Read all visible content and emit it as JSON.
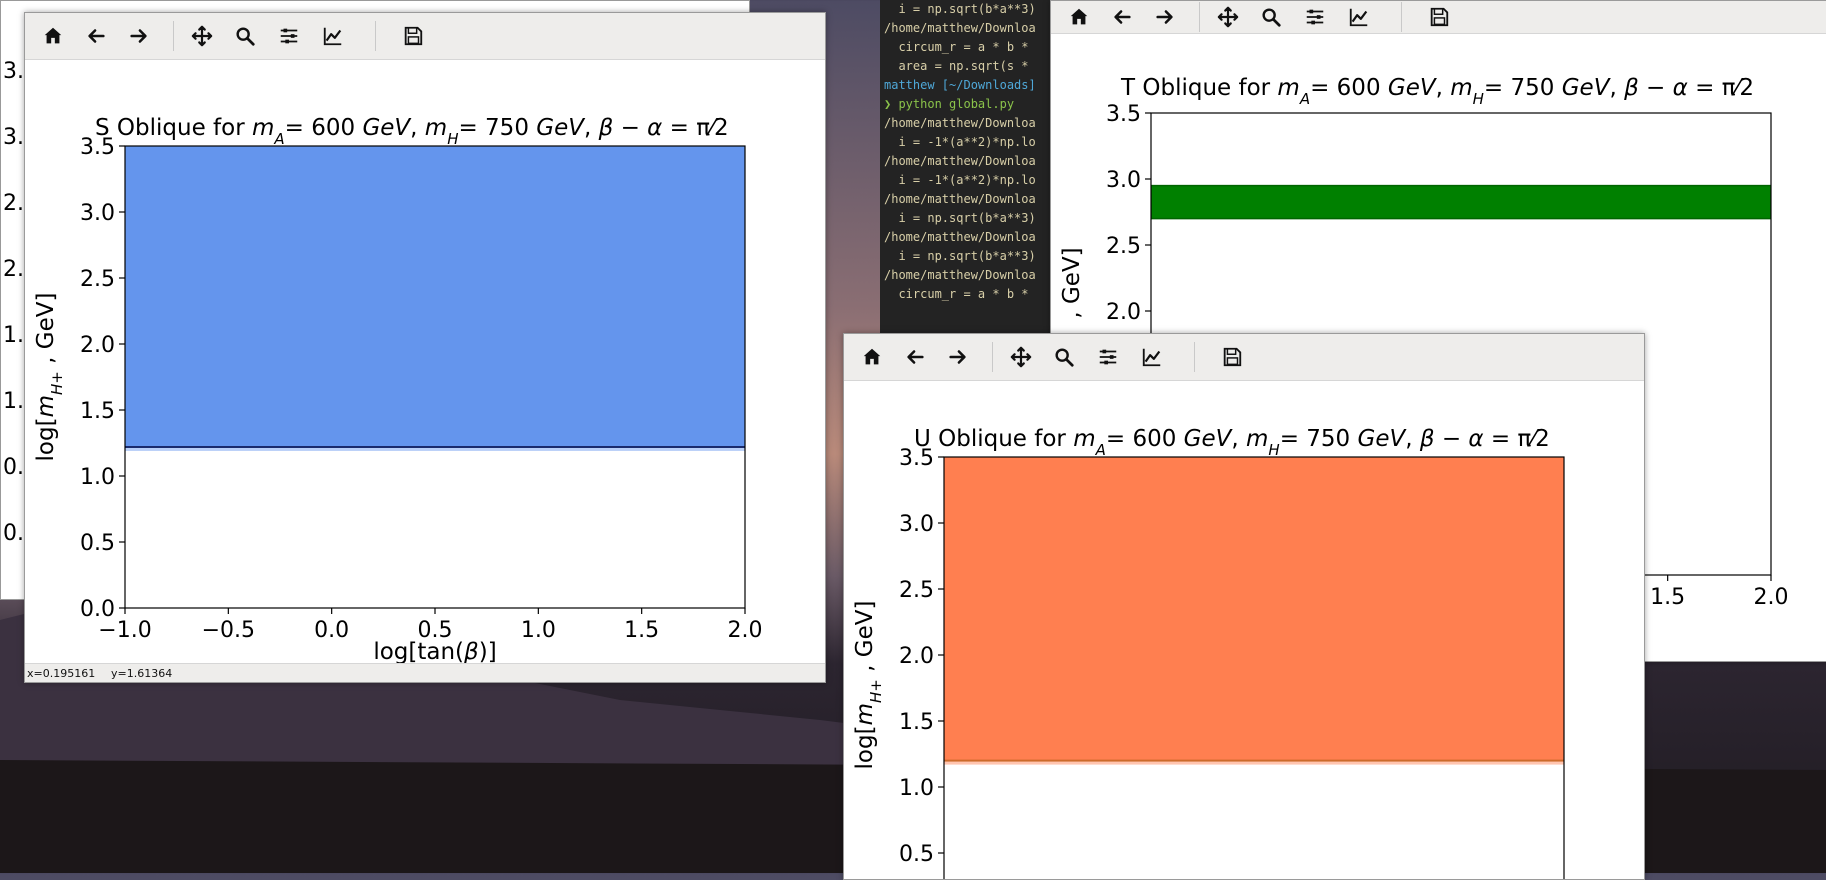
{
  "terminal": {
    "lines": [
      {
        "text": "  i = np.sqrt(b*a**3)",
        "cls": ""
      },
      {
        "text": "/home/matthew/Downloa",
        "cls": ""
      },
      {
        "text": "  circum_r = a * b *",
        "cls": ""
      },
      {
        "text": "  area = np.sqrt(s *",
        "cls": ""
      },
      {
        "text": "matthew [~/Downloads]",
        "cls": "cyan"
      },
      {
        "text": "❯ python global.py",
        "cls": "green"
      },
      {
        "text": "/home/matthew/Downloa",
        "cls": ""
      },
      {
        "text": "  i = -1*(a**2)*np.lo",
        "cls": ""
      },
      {
        "text": "/home/matthew/Downloa",
        "cls": ""
      },
      {
        "text": "  i = -1*(a**2)*np.lo",
        "cls": ""
      },
      {
        "text": "/home/matthew/Downloa",
        "cls": ""
      },
      {
        "text": "  i = np.sqrt(b*a**3)",
        "cls": ""
      },
      {
        "text": "/home/matthew/Downloa",
        "cls": ""
      },
      {
        "text": "  i = np.sqrt(b*a**3)",
        "cls": ""
      },
      {
        "text": "/home/matthew/Downloa",
        "cls": ""
      },
      {
        "text": "  circum_r = a * b *",
        "cls": ""
      }
    ]
  },
  "ghost_window": {
    "tick_fragments": [
      "3.",
      "3.",
      "2.",
      "2.",
      "1.",
      "1.",
      "0.",
      "0."
    ]
  },
  "toolbar_icons": [
    "home-icon",
    "back-arrow-icon",
    "forward-arrow-icon",
    "pan-icon",
    "zoom-icon",
    "subplots-icon",
    "edit-curve-icon",
    "save-icon"
  ],
  "s_window": {
    "title_prefix": "S Oblique for ",
    "title_math": "m_{A^0}=600 GeV, m_{H^0}=750 GeV, β−α=π/2",
    "status_x": "x=0.195161",
    "status_y": "y=1.61364"
  },
  "t_window": {
    "title_prefix": "T Oblique for ",
    "title_math": "m_{A^0}=600 GeV, m_{H^0}=750 GeV, β−α=π/2"
  },
  "u_window": {
    "title_prefix": "U Oblique for ",
    "title_math": "m_{A^0}=600 GeV, m_{H^0}=750 GeV, β−α=π/2"
  },
  "chart_data": [
    {
      "type": "area",
      "name": "S",
      "title": "S Oblique for m_{A^0}=600 GeV, m_{H^0}=750 GeV, β−α=π/2",
      "xlabel": "log[tan(β)]",
      "ylabel": "log[m_{H+}, GeV]",
      "xlim": [
        -1.0,
        2.0
      ],
      "ylim": [
        0.0,
        3.5
      ],
      "xticks": [
        "−1.0",
        "−0.5",
        "0.0",
        "0.5",
        "1.0",
        "1.5",
        "2.0"
      ],
      "yticks": [
        "0.0",
        "0.5",
        "1.0",
        "1.5",
        "2.0",
        "2.5",
        "3.0",
        "3.5"
      ],
      "band": {
        "y_low": 1.22,
        "y_high": 3.5
      },
      "color": "#6495ed",
      "edge_color": "#1a2a6c"
    },
    {
      "type": "area",
      "name": "T",
      "title": "T Oblique for m_{A^0}=600 GeV, m_{H^0}=750 GeV, β−α=π/2",
      "ylabel": "GeV]",
      "ylim_visible": [
        2.0,
        3.5
      ],
      "xticks_visible": [
        "1.5",
        "2.0"
      ],
      "yticks_visible": [
        "2.0",
        "2.5",
        "3.0",
        "3.5"
      ],
      "band": {
        "y_low": 2.7,
        "y_high": 2.95
      },
      "color": "#008000"
    },
    {
      "type": "area",
      "name": "U",
      "title": "U Oblique for m_{A^0}=600 GeV, m_{H^0}=750 GeV, β−α=π/2",
      "ylabel": "log[m_{H+}, GeV]",
      "ylim": [
        0.0,
        3.5
      ],
      "yticks_visible": [
        "0.5",
        "1.0",
        "1.5",
        "2.0",
        "2.5",
        "3.0",
        "3.5"
      ],
      "band": {
        "y_low": 1.2,
        "y_high": 3.5
      },
      "color": "#ff7f50",
      "edge_color": "#cc6a2a"
    }
  ]
}
